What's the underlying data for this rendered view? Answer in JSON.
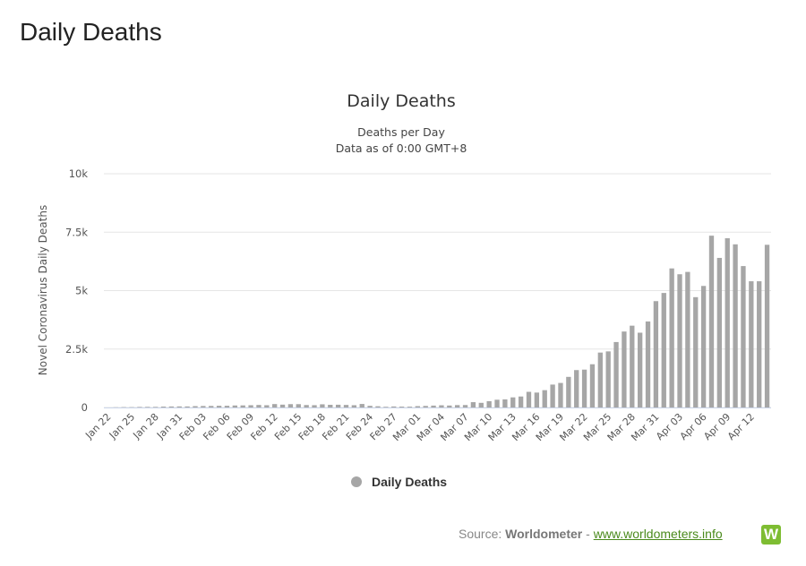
{
  "page": {
    "title": "Daily Deaths"
  },
  "source": {
    "label": "Source:",
    "name": "Worldometer",
    "separator": "-",
    "link_text": "www.worldometers.info",
    "logo_letter": "W"
  },
  "colors": {
    "bar": "#a6a6a6",
    "grid": "#e6e6e6",
    "legend_marker": "#a6a6a6",
    "link": "#4a8a1c",
    "logo": "#7ebd32"
  },
  "chart_data": {
    "type": "bar",
    "title": "Daily Deaths",
    "subtitle_lines": [
      "Deaths per Day",
      "Data as of 0:00 GMT+8"
    ],
    "xlabel": "",
    "ylabel": "Novel Coronavirus Daily Deaths",
    "ylim": [
      0,
      10000
    ],
    "yticks": [
      0,
      2500,
      5000,
      7500,
      10000
    ],
    "ytick_labels": [
      "0",
      "2.5k",
      "5k",
      "7.5k",
      "10k"
    ],
    "x_tick_labels": [
      "Jan 22",
      "Jan 25",
      "Jan 28",
      "Jan 31",
      "Feb 03",
      "Feb 06",
      "Feb 09",
      "Feb 12",
      "Feb 15",
      "Feb 18",
      "Feb 21",
      "Feb 24",
      "Feb 27",
      "Mar 01",
      "Mar 04",
      "Mar 07",
      "Mar 10",
      "Mar 13",
      "Mar 16",
      "Mar 19",
      "Mar 22",
      "Mar 25",
      "Mar 28",
      "Mar 31",
      "Apr 03",
      "Apr 06",
      "Apr 09",
      "Apr 12"
    ],
    "grid": true,
    "legend": {
      "position": "bottom-center",
      "entries": [
        "Daily Deaths"
      ]
    },
    "categories": [
      "Jan 22",
      "Jan 23",
      "Jan 24",
      "Jan 25",
      "Jan 26",
      "Jan 27",
      "Jan 28",
      "Jan 29",
      "Jan 30",
      "Jan 31",
      "Feb 01",
      "Feb 02",
      "Feb 03",
      "Feb 04",
      "Feb 05",
      "Feb 06",
      "Feb 07",
      "Feb 08",
      "Feb 09",
      "Feb 10",
      "Feb 11",
      "Feb 12",
      "Feb 13",
      "Feb 14",
      "Feb 15",
      "Feb 16",
      "Feb 17",
      "Feb 18",
      "Feb 19",
      "Feb 20",
      "Feb 21",
      "Feb 22",
      "Feb 23",
      "Feb 24",
      "Feb 25",
      "Feb 26",
      "Feb 27",
      "Feb 28",
      "Feb 29",
      "Mar 01",
      "Mar 02",
      "Mar 03",
      "Mar 04",
      "Mar 05",
      "Mar 06",
      "Mar 07",
      "Mar 08",
      "Mar 09",
      "Mar 10",
      "Mar 11",
      "Mar 12",
      "Mar 13",
      "Mar 14",
      "Mar 15",
      "Mar 16",
      "Mar 17",
      "Mar 18",
      "Mar 19",
      "Mar 20",
      "Mar 21",
      "Mar 22",
      "Mar 23",
      "Mar 24",
      "Mar 25",
      "Mar 26",
      "Mar 27",
      "Mar 28",
      "Mar 29",
      "Mar 30",
      "Mar 31",
      "Apr 01",
      "Apr 02",
      "Apr 03",
      "Apr 04",
      "Apr 05",
      "Apr 06",
      "Apr 07",
      "Apr 08",
      "Apr 09",
      "Apr 10",
      "Apr 11",
      "Apr 12",
      "Apr 13",
      "Apr 14"
    ],
    "series": [
      {
        "name": "Daily Deaths",
        "values": [
          0,
          8,
          16,
          15,
          24,
          26,
          26,
          38,
          43,
          46,
          45,
          58,
          64,
          66,
          73,
          73,
          86,
          89,
          97,
          108,
          97,
          146,
          121,
          143,
          142,
          105,
          98,
          136,
          115,
          118,
          109,
          97,
          150,
          71,
          52,
          29,
          44,
          37,
          35,
          58,
          67,
          81,
          94,
          84,
          102,
          105,
          228,
          199,
          268,
          332,
          346,
          432,
          470,
          670,
          638,
          741,
          980,
          1050,
          1310,
          1600,
          1620,
          1850,
          2350,
          2400,
          2800,
          3250,
          3500,
          3200,
          3680,
          4550,
          4900,
          5950,
          5700,
          5800,
          4720,
          5200,
          7350,
          6400,
          7240,
          6980,
          6050,
          5400,
          5400,
          6960
        ]
      }
    ]
  }
}
